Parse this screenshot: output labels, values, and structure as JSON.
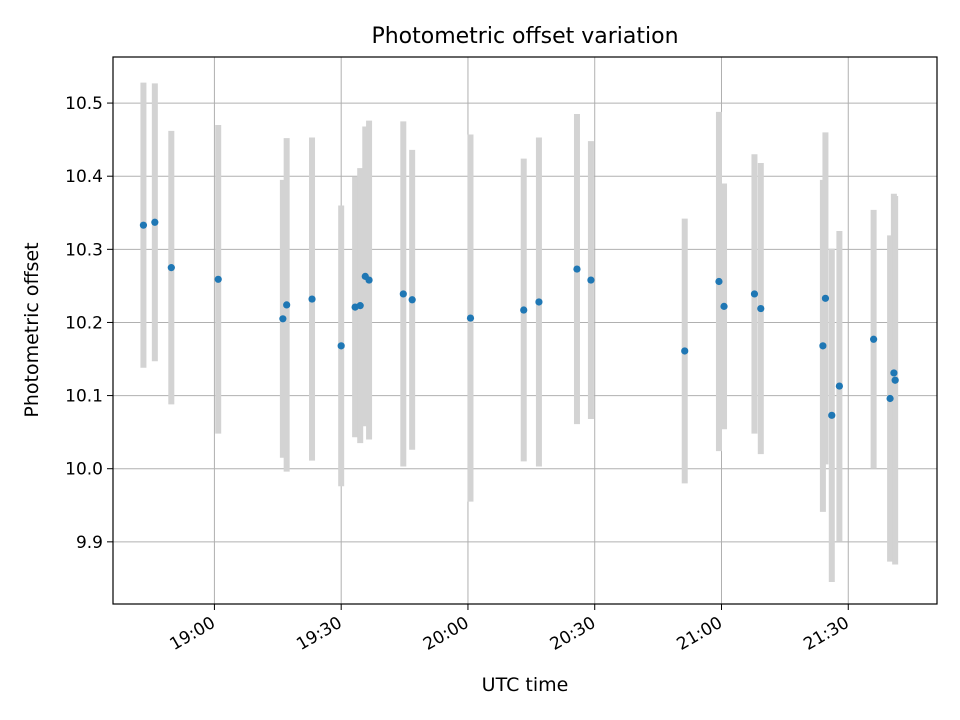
{
  "chart_data": {
    "type": "scatter",
    "title": "Photometric offset variation",
    "xlabel": "UTC time",
    "ylabel": "Photometric offset",
    "xlim": [
      18.6,
      21.85
    ],
    "ylim": [
      9.815,
      10.563
    ],
    "grid": true,
    "x_ticks": [
      {
        "value": 19.0,
        "label": "19:00"
      },
      {
        "value": 19.5,
        "label": "19:30"
      },
      {
        "value": 20.0,
        "label": "20:00"
      },
      {
        "value": 20.5,
        "label": "20:30"
      },
      {
        "value": 21.0,
        "label": "21:00"
      },
      {
        "value": 21.5,
        "label": "21:30"
      }
    ],
    "y_ticks": [
      {
        "value": 9.9,
        "label": "9.9"
      },
      {
        "value": 10.0,
        "label": "10.0"
      },
      {
        "value": 10.1,
        "label": "10.1"
      },
      {
        "value": 10.2,
        "label": "10.2"
      },
      {
        "value": 10.3,
        "label": "10.3"
      },
      {
        "value": 10.4,
        "label": "10.4"
      },
      {
        "value": 10.5,
        "label": "10.5"
      }
    ],
    "marker_color": "#1f77b4",
    "errorbar_color": "#d3d3d3",
    "points": [
      {
        "x": 18.72,
        "y": 10.333,
        "err": 0.195
      },
      {
        "x": 18.765,
        "y": 10.337,
        "err": 0.19
      },
      {
        "x": 18.83,
        "y": 10.275,
        "err": 0.187
      },
      {
        "x": 19.015,
        "y": 10.259,
        "err": 0.211
      },
      {
        "x": 19.27,
        "y": 10.205,
        "err": 0.19
      },
      {
        "x": 19.285,
        "y": 10.224,
        "err": 0.228
      },
      {
        "x": 19.385,
        "y": 10.232,
        "err": 0.221
      },
      {
        "x": 19.5,
        "y": 10.168,
        "err": 0.192
      },
      {
        "x": 19.555,
        "y": 10.221,
        "err": 0.178
      },
      {
        "x": 19.575,
        "y": 10.223,
        "err": 0.188
      },
      {
        "x": 19.595,
        "y": 10.263,
        "err": 0.205
      },
      {
        "x": 19.61,
        "y": 10.258,
        "err": 0.218
      },
      {
        "x": 19.745,
        "y": 10.239,
        "err": 0.236
      },
      {
        "x": 19.78,
        "y": 10.231,
        "err": 0.205
      },
      {
        "x": 20.01,
        "y": 10.206,
        "err": 0.251
      },
      {
        "x": 20.22,
        "y": 10.217,
        "err": 0.207
      },
      {
        "x": 20.28,
        "y": 10.228,
        "err": 0.225
      },
      {
        "x": 20.43,
        "y": 10.273,
        "err": 0.212
      },
      {
        "x": 20.485,
        "y": 10.258,
        "err": 0.19
      },
      {
        "x": 20.855,
        "y": 10.161,
        "err": 0.181
      },
      {
        "x": 20.99,
        "y": 10.256,
        "err": 0.232
      },
      {
        "x": 21.01,
        "y": 10.222,
        "err": 0.168
      },
      {
        "x": 21.13,
        "y": 10.239,
        "err": 0.191
      },
      {
        "x": 21.155,
        "y": 10.219,
        "err": 0.199
      },
      {
        "x": 21.4,
        "y": 10.168,
        "err": 0.227
      },
      {
        "x": 21.41,
        "y": 10.233,
        "err": 0.227
      },
      {
        "x": 21.435,
        "y": 10.073,
        "err": 0.228
      },
      {
        "x": 21.465,
        "y": 10.113,
        "err": 0.212
      },
      {
        "x": 21.6,
        "y": 10.177,
        "err": 0.177
      },
      {
        "x": 21.665,
        "y": 10.096,
        "err": 0.223
      },
      {
        "x": 21.68,
        "y": 10.131,
        "err": 0.245
      },
      {
        "x": 21.685,
        "y": 10.121,
        "err": 0.252
      }
    ]
  }
}
